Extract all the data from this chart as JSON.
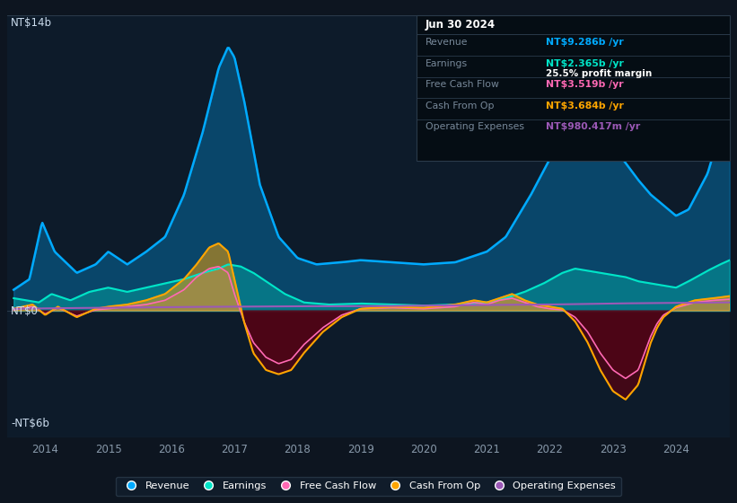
{
  "background_color": "#0d1520",
  "plot_bg_color": "#0d1b2a",
  "ylabel_top": "NT$14b",
  "ylabel_zero": "NT$0",
  "ylabel_bottom": "-NT$6b",
  "ylim": [
    -6,
    14
  ],
  "xlim": [
    2013.4,
    2024.85
  ],
  "years_ticks": [
    2014,
    2015,
    2016,
    2017,
    2018,
    2019,
    2020,
    2021,
    2022,
    2023,
    2024
  ],
  "colors": {
    "revenue": "#00aaff",
    "earnings": "#00e5c8",
    "free_cash_flow": "#ff69b4",
    "cash_from_op": "#ffa500",
    "operating_expenses": "#9b59b6"
  },
  "info_box": {
    "date": "Jun 30 2024",
    "revenue_label": "Revenue",
    "revenue_value": "NT$9.286b",
    "earnings_label": "Earnings",
    "earnings_value": "NT$2.365b",
    "profit_margin": "25.5% profit margin",
    "fcf_label": "Free Cash Flow",
    "fcf_value": "NT$3.519b",
    "cashop_label": "Cash From Op",
    "cashop_value": "NT$3.684b",
    "opex_label": "Operating Expenses",
    "opex_value": "NT$980.417m"
  },
  "legend": [
    {
      "label": "Revenue",
      "color": "#00aaff"
    },
    {
      "label": "Earnings",
      "color": "#00e5c8"
    },
    {
      "label": "Free Cash Flow",
      "color": "#ff69b4"
    },
    {
      "label": "Cash From Op",
      "color": "#ffa500"
    },
    {
      "label": "Operating Expenses",
      "color": "#9b59b6"
    }
  ]
}
